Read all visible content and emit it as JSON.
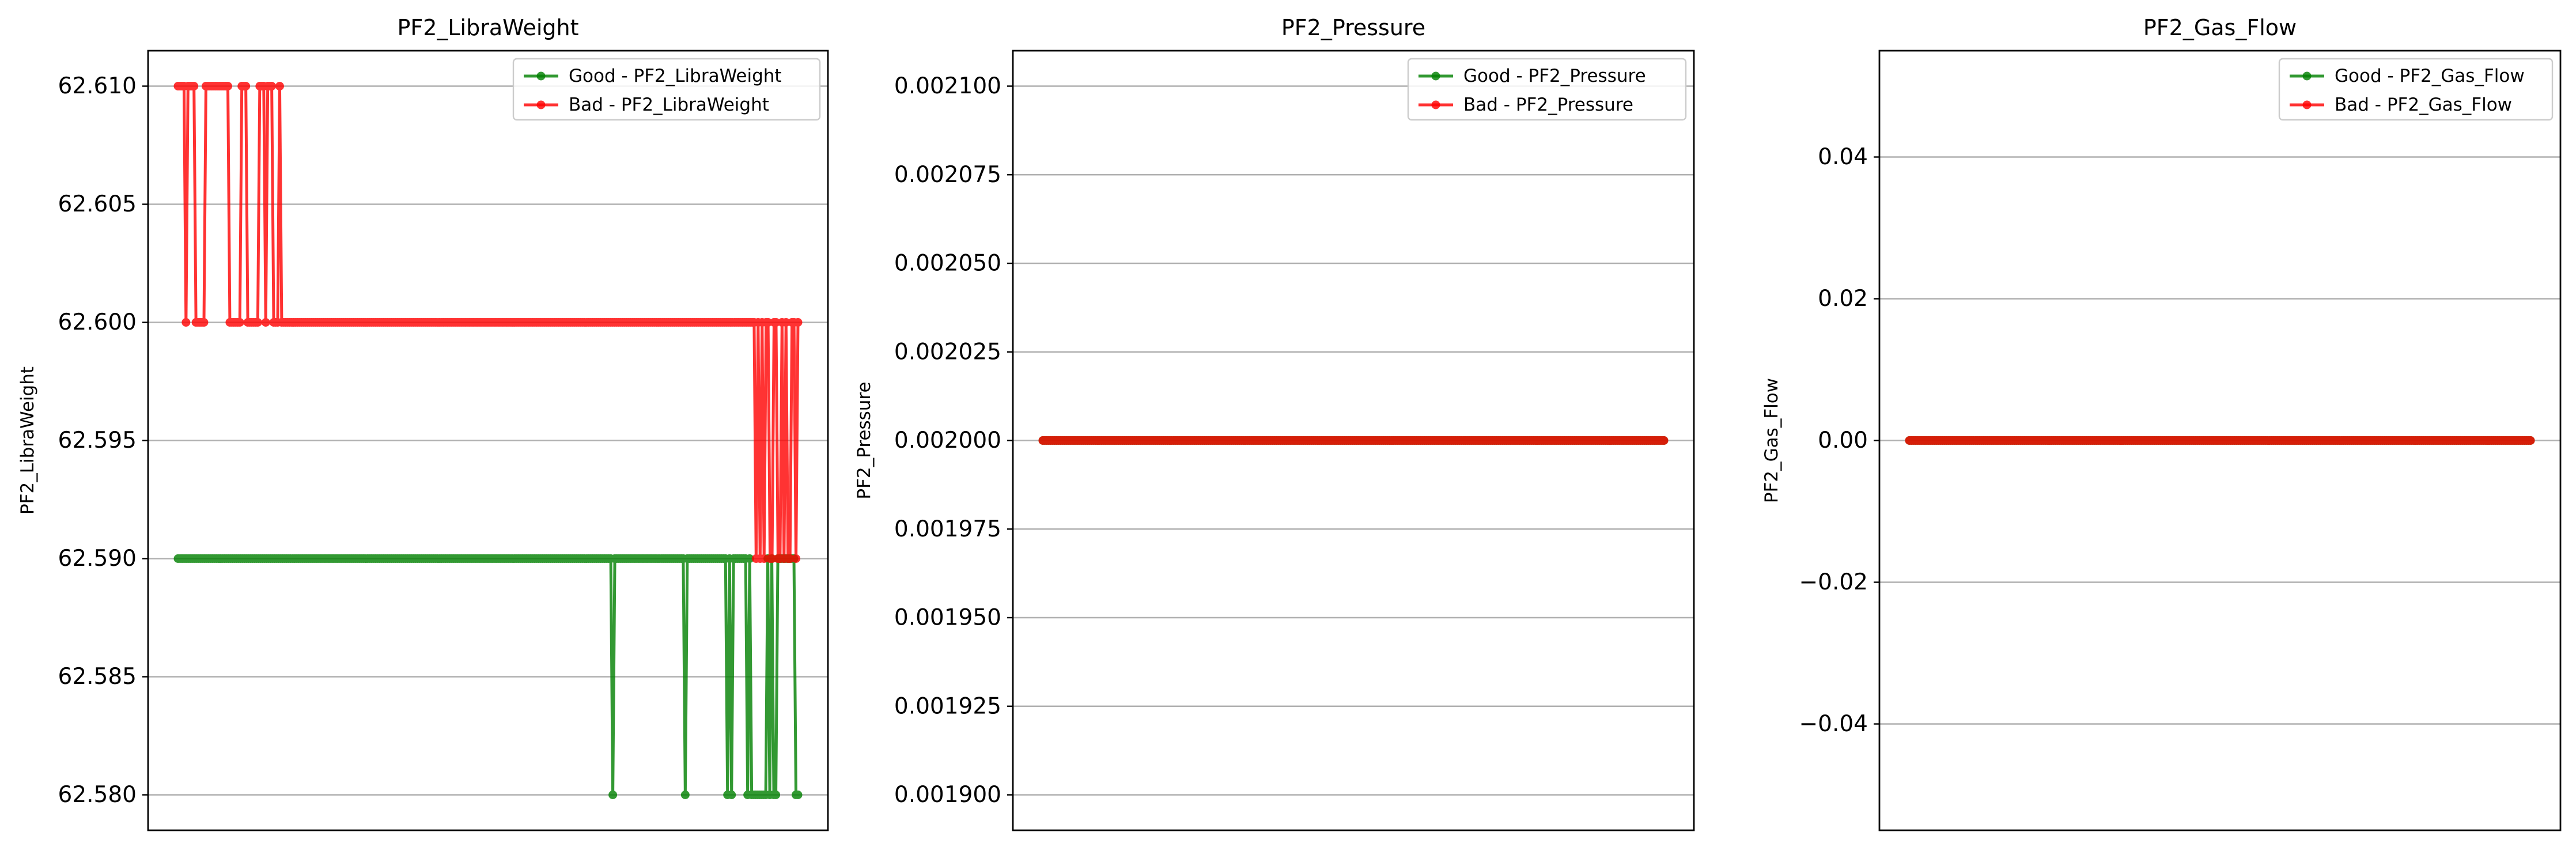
{
  "chart_data": [
    {
      "type": "line",
      "title": "PF2_LibraWeight",
      "xlabel": "",
      "ylabel": "PF2_LibraWeight",
      "ylim": [
        62.5785,
        62.6115
      ],
      "yticks": [
        62.58,
        62.585,
        62.59,
        62.595,
        62.6,
        62.605,
        62.61
      ],
      "ytick_labels": [
        "62.580",
        "62.585",
        "62.590",
        "62.595",
        "62.600",
        "62.605",
        "62.610"
      ],
      "x_ticks_visible": false,
      "grid": "y",
      "legend": "top-right",
      "series": [
        {
          "name": "Good - PF2_LibraWeight",
          "color": "#008000",
          "values": [
            62.59,
            62.59,
            62.59,
            62.59,
            62.59,
            62.59,
            62.59,
            62.59,
            62.59,
            62.59,
            62.59,
            62.59,
            62.59,
            62.59,
            62.59,
            62.59,
            62.59,
            62.59,
            62.59,
            62.59,
            62.59,
            62.59,
            62.59,
            62.59,
            62.59,
            62.59,
            62.59,
            62.59,
            62.59,
            62.59,
            62.59,
            62.59,
            62.59,
            62.59,
            62.59,
            62.59,
            62.59,
            62.59,
            62.59,
            62.59,
            62.59,
            62.59,
            62.59,
            62.59,
            62.59,
            62.59,
            62.59,
            62.59,
            62.59,
            62.59,
            62.59,
            62.59,
            62.59,
            62.59,
            62.59,
            62.59,
            62.59,
            62.59,
            62.59,
            62.59,
            62.59,
            62.59,
            62.59,
            62.59,
            62.59,
            62.59,
            62.59,
            62.59,
            62.59,
            62.59,
            62.59,
            62.59,
            62.59,
            62.59,
            62.59,
            62.59,
            62.59,
            62.59,
            62.59,
            62.59,
            62.59,
            62.59,
            62.59,
            62.59,
            62.59,
            62.59,
            62.59,
            62.59,
            62.59,
            62.59,
            62.59,
            62.59,
            62.59,
            62.59,
            62.59,
            62.59,
            62.59,
            62.59,
            62.59,
            62.59,
            62.59,
            62.59,
            62.59,
            62.59,
            62.59,
            62.59,
            62.59,
            62.59,
            62.59,
            62.59,
            62.59,
            62.59,
            62.59,
            62.59,
            62.59,
            62.59,
            62.59,
            62.59,
            62.59,
            62.59,
            62.59,
            62.59,
            62.59,
            62.59,
            62.59,
            62.59,
            62.59,
            62.59,
            62.59,
            62.59,
            62.59,
            62.59,
            62.59,
            62.59,
            62.59,
            62.59,
            62.59,
            62.59,
            62.59,
            62.59,
            62.59,
            62.59,
            62.59,
            62.59,
            62.59,
            62.59,
            62.59,
            62.59,
            62.59,
            62.59,
            62.59,
            62.59,
            62.59,
            62.59,
            62.59,
            62.59,
            62.59,
            62.59,
            62.59,
            62.59,
            62.59,
            62.59,
            62.59,
            62.59,
            62.59,
            62.59,
            62.59,
            62.59,
            62.59,
            62.59,
            62.59,
            62.59,
            62.59,
            62.59,
            62.59,
            62.59,
            62.59,
            62.59,
            62.59,
            62.59,
            62.59,
            62.59,
            62.59,
            62.59,
            62.59,
            62.59,
            62.59,
            62.59,
            62.59,
            62.59,
            62.59,
            62.59,
            62.59,
            62.59,
            62.59,
            62.59,
            62.59,
            62.59,
            62.59,
            62.59,
            62.59,
            62.59,
            62.59,
            62.59,
            62.59,
            62.59,
            62.59,
            62.59,
            62.59,
            62.59,
            62.59,
            62.59,
            62.59,
            62.59,
            62.59,
            62.59,
            62.58,
            62.59,
            62.59,
            62.59,
            62.59,
            62.59,
            62.59,
            62.59,
            62.59,
            62.59,
            62.59,
            62.59,
            62.59,
            62.59,
            62.59,
            62.59,
            62.59,
            62.59,
            62.59,
            62.59,
            62.59,
            62.59,
            62.59,
            62.59,
            62.59,
            62.59,
            62.59,
            62.59,
            62.59,
            62.59,
            62.59,
            62.59,
            62.59,
            62.59,
            62.59,
            62.59,
            62.58,
            62.59,
            62.59,
            62.59,
            62.59,
            62.59,
            62.59,
            62.59,
            62.59,
            62.59,
            62.59,
            62.59,
            62.59,
            62.59,
            62.59,
            62.59,
            62.59,
            62.59,
            62.59,
            62.59,
            62.59,
            62.58,
            62.59,
            62.58,
            62.59,
            62.59,
            62.59,
            62.59,
            62.59,
            62.59,
            62.59,
            62.58,
            62.59,
            62.58,
            62.58,
            62.58,
            62.58,
            62.58,
            62.58,
            62.58,
            62.58,
            62.59,
            62.58,
            62.59,
            62.58,
            62.58,
            62.59,
            62.59,
            62.59,
            62.59,
            62.59,
            62.59,
            62.59,
            62.59,
            62.59,
            62.58,
            62.58
          ]
        },
        {
          "name": "Bad - PF2_LibraWeight",
          "color": "#ff0000",
          "values": [
            62.61,
            62.61,
            62.61,
            62.61,
            62.6,
            62.61,
            62.61,
            62.61,
            62.61,
            62.6,
            62.6,
            62.6,
            62.6,
            62.6,
            62.61,
            62.61,
            62.61,
            62.61,
            62.61,
            62.61,
            62.61,
            62.61,
            62.61,
            62.61,
            62.61,
            62.61,
            62.6,
            62.6,
            62.6,
            62.6,
            62.6,
            62.6,
            62.61,
            62.61,
            62.61,
            62.6,
            62.6,
            62.6,
            62.6,
            62.6,
            62.6,
            62.61,
            62.61,
            62.61,
            62.6,
            62.61,
            62.61,
            62.61,
            62.6,
            62.6,
            62.6,
            62.61,
            62.6,
            62.6,
            62.6,
            62.6,
            62.6,
            62.6,
            62.6,
            62.6,
            62.6,
            62.6,
            62.6,
            62.6,
            62.6,
            62.6,
            62.6,
            62.6,
            62.6,
            62.6,
            62.6,
            62.6,
            62.6,
            62.6,
            62.6,
            62.6,
            62.6,
            62.6,
            62.6,
            62.6,
            62.6,
            62.6,
            62.6,
            62.6,
            62.6,
            62.6,
            62.6,
            62.6,
            62.6,
            62.6,
            62.6,
            62.6,
            62.6,
            62.6,
            62.6,
            62.6,
            62.6,
            62.6,
            62.6,
            62.6,
            62.6,
            62.6,
            62.6,
            62.6,
            62.6,
            62.6,
            62.6,
            62.6,
            62.6,
            62.6,
            62.6,
            62.6,
            62.6,
            62.6,
            62.6,
            62.6,
            62.6,
            62.6,
            62.6,
            62.6,
            62.6,
            62.6,
            62.6,
            62.6,
            62.6,
            62.6,
            62.6,
            62.6,
            62.6,
            62.6,
            62.6,
            62.6,
            62.6,
            62.6,
            62.6,
            62.6,
            62.6,
            62.6,
            62.6,
            62.6,
            62.6,
            62.6,
            62.6,
            62.6,
            62.6,
            62.6,
            62.6,
            62.6,
            62.6,
            62.6,
            62.6,
            62.6,
            62.6,
            62.6,
            62.6,
            62.6,
            62.6,
            62.6,
            62.6,
            62.6,
            62.6,
            62.6,
            62.6,
            62.6,
            62.6,
            62.6,
            62.6,
            62.6,
            62.6,
            62.6,
            62.6,
            62.6,
            62.6,
            62.6,
            62.6,
            62.6,
            62.6,
            62.6,
            62.6,
            62.6,
            62.6,
            62.6,
            62.6,
            62.6,
            62.6,
            62.6,
            62.6,
            62.6,
            62.6,
            62.6,
            62.6,
            62.6,
            62.6,
            62.6,
            62.6,
            62.6,
            62.6,
            62.6,
            62.6,
            62.6,
            62.6,
            62.6,
            62.6,
            62.6,
            62.6,
            62.6,
            62.6,
            62.6,
            62.6,
            62.6,
            62.6,
            62.6,
            62.6,
            62.6,
            62.6,
            62.6,
            62.6,
            62.6,
            62.6,
            62.6,
            62.6,
            62.6,
            62.6,
            62.6,
            62.6,
            62.6,
            62.6,
            62.6,
            62.6,
            62.6,
            62.6,
            62.6,
            62.6,
            62.6,
            62.6,
            62.6,
            62.6,
            62.6,
            62.6,
            62.6,
            62.6,
            62.6,
            62.6,
            62.6,
            62.6,
            62.6,
            62.6,
            62.6,
            62.6,
            62.6,
            62.6,
            62.6,
            62.6,
            62.6,
            62.6,
            62.6,
            62.6,
            62.6,
            62.6,
            62.6,
            62.6,
            62.6,
            62.6,
            62.6,
            62.6,
            62.6,
            62.6,
            62.6,
            62.6,
            62.6,
            62.6,
            62.6,
            62.6,
            62.6,
            62.6,
            62.6,
            62.6,
            62.6,
            62.6,
            62.6,
            62.6,
            62.6,
            62.6,
            62.6,
            62.6,
            62.6,
            62.6,
            62.6,
            62.6,
            62.6,
            62.59,
            62.6,
            62.59,
            62.6,
            62.59,
            62.6,
            62.6,
            62.59,
            62.59,
            62.6,
            62.6,
            62.59,
            62.59,
            62.6,
            62.59,
            62.6,
            62.59,
            62.59,
            62.6,
            62.6,
            62.59,
            62.6
          ]
        }
      ]
    },
    {
      "type": "line",
      "title": "PF2_Pressure",
      "xlabel": "",
      "ylabel": "PF2_Pressure",
      "ylim": [
        0.00189,
        0.00211
      ],
      "yticks": [
        0.0019,
        0.001925,
        0.00195,
        0.001975,
        0.002,
        0.002025,
        0.00205,
        0.002075,
        0.0021
      ],
      "ytick_labels": [
        "0.001900",
        "0.001925",
        "0.001950",
        "0.001975",
        "0.002000",
        "0.002025",
        "0.002050",
        "0.002075",
        "0.002100"
      ],
      "x_ticks_visible": false,
      "grid": "y",
      "legend": "top-right",
      "series": [
        {
          "name": "Good - PF2_Pressure",
          "color": "#008000",
          "values": [
            0.002
          ],
          "repeat": 320
        },
        {
          "name": "Bad - PF2_Pressure",
          "color": "#ff0000",
          "values": [
            0.002
          ],
          "repeat": 320
        }
      ]
    },
    {
      "type": "line",
      "title": "PF2_Gas_Flow",
      "xlabel": "",
      "ylabel": "PF2_Gas_Flow",
      "ylim": [
        -0.055,
        0.055
      ],
      "yticks": [
        -0.04,
        -0.02,
        0.0,
        0.02,
        0.04
      ],
      "ytick_labels": [
        "−0.04",
        "−0.02",
        "0.00",
        "0.02",
        "0.04"
      ],
      "x_ticks_visible": false,
      "grid": "y",
      "legend": "top-right",
      "series": [
        {
          "name": "Good - PF2_Gas_Flow",
          "color": "#008000",
          "values": [
            0.0
          ],
          "repeat": 320
        },
        {
          "name": "Bad - PF2_Gas_Flow",
          "color": "#ff0000",
          "values": [
            0.0
          ],
          "repeat": 320
        }
      ]
    }
  ]
}
